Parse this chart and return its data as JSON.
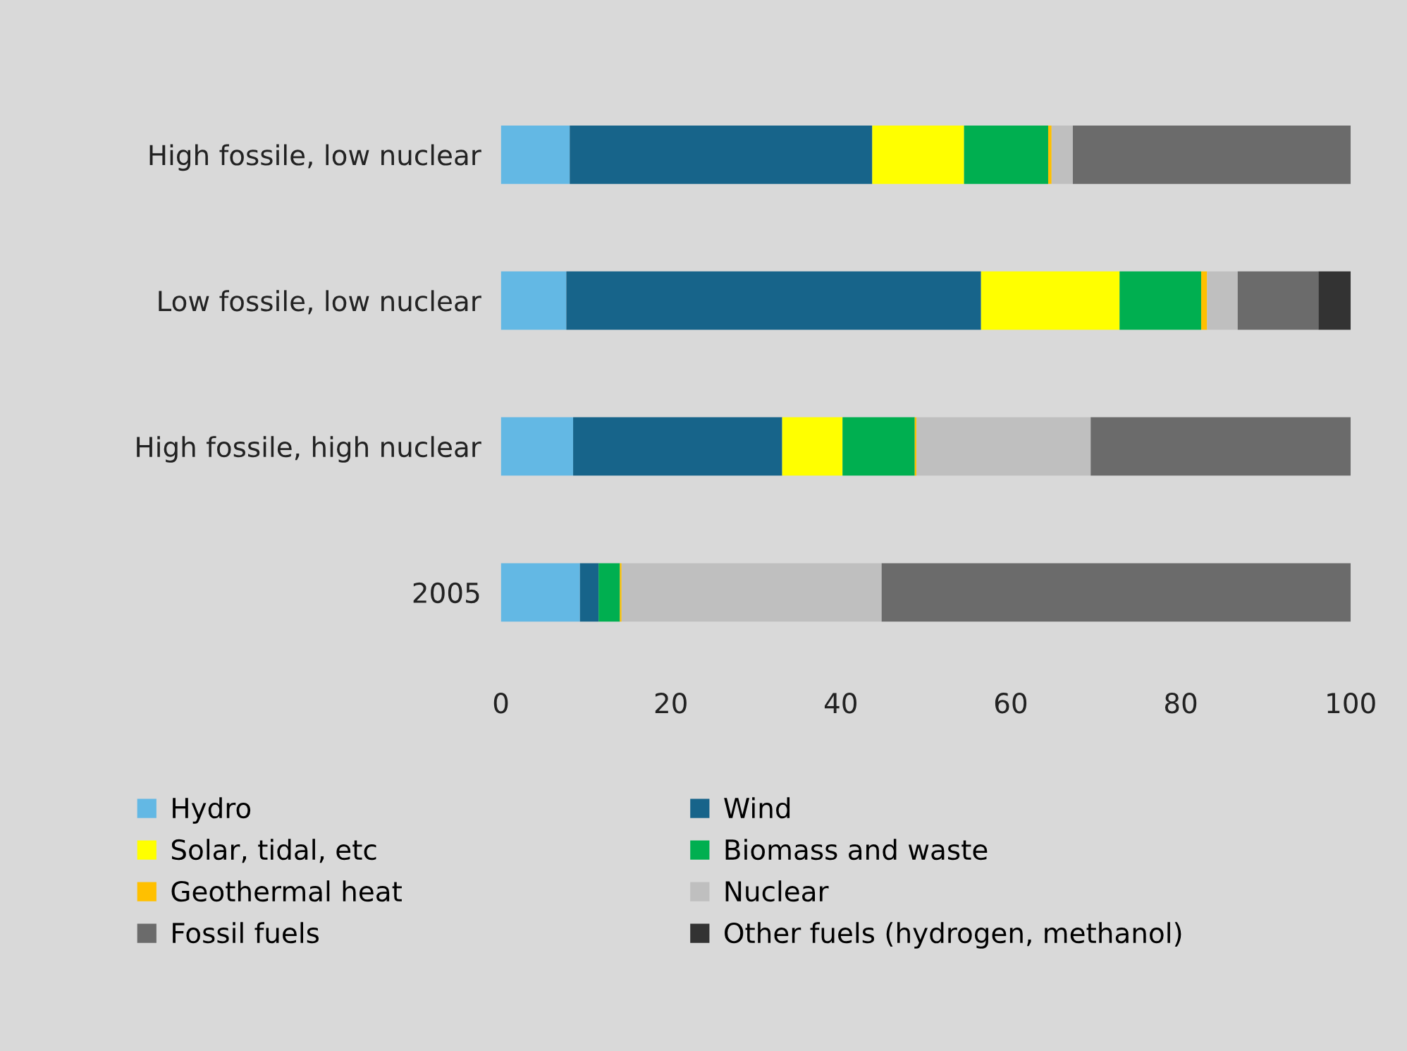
{
  "chart_data": {
    "type": "bar",
    "orientation": "horizontal",
    "stacked": true,
    "categories": [
      "High fossile, low nuclear",
      "Low fossile, low nuclear",
      "High fossile, high nuclear",
      "2005"
    ],
    "series": [
      {
        "name": "Hydro",
        "color": "#63b8e4",
        "values": [
          8.1,
          7.7,
          8.5,
          9.3
        ]
      },
      {
        "name": "Wind",
        "color": "#17648a",
        "values": [
          35.6,
          48.8,
          24.6,
          2.2
        ]
      },
      {
        "name": "Solar, tidal, etc",
        "color": "#ffff00",
        "values": [
          10.8,
          16.3,
          7.1,
          0
        ]
      },
      {
        "name": "Biomass and waste",
        "color": "#00af50",
        "values": [
          9.9,
          9.6,
          8.5,
          2.5
        ]
      },
      {
        "name": "Geothermal heat",
        "color": "#ffc000",
        "values": [
          0.4,
          0.7,
          0.2,
          0.2
        ]
      },
      {
        "name": "Nuclear",
        "color": "#bfbfbf",
        "values": [
          2.5,
          3.6,
          20.5,
          30.6
        ]
      },
      {
        "name": "Fossil fuels",
        "color": "#6b6b6b",
        "values": [
          32.7,
          9.5,
          30.6,
          55.2
        ]
      },
      {
        "name": "Other fuels (hydrogen, methanol)",
        "color": "#333333",
        "values": [
          0,
          3.8,
          0,
          0
        ]
      }
    ],
    "xlim": [
      0,
      100
    ],
    "xticks": [
      0,
      20,
      40,
      60,
      80,
      100
    ],
    "grid": false,
    "legend": "bottom"
  }
}
